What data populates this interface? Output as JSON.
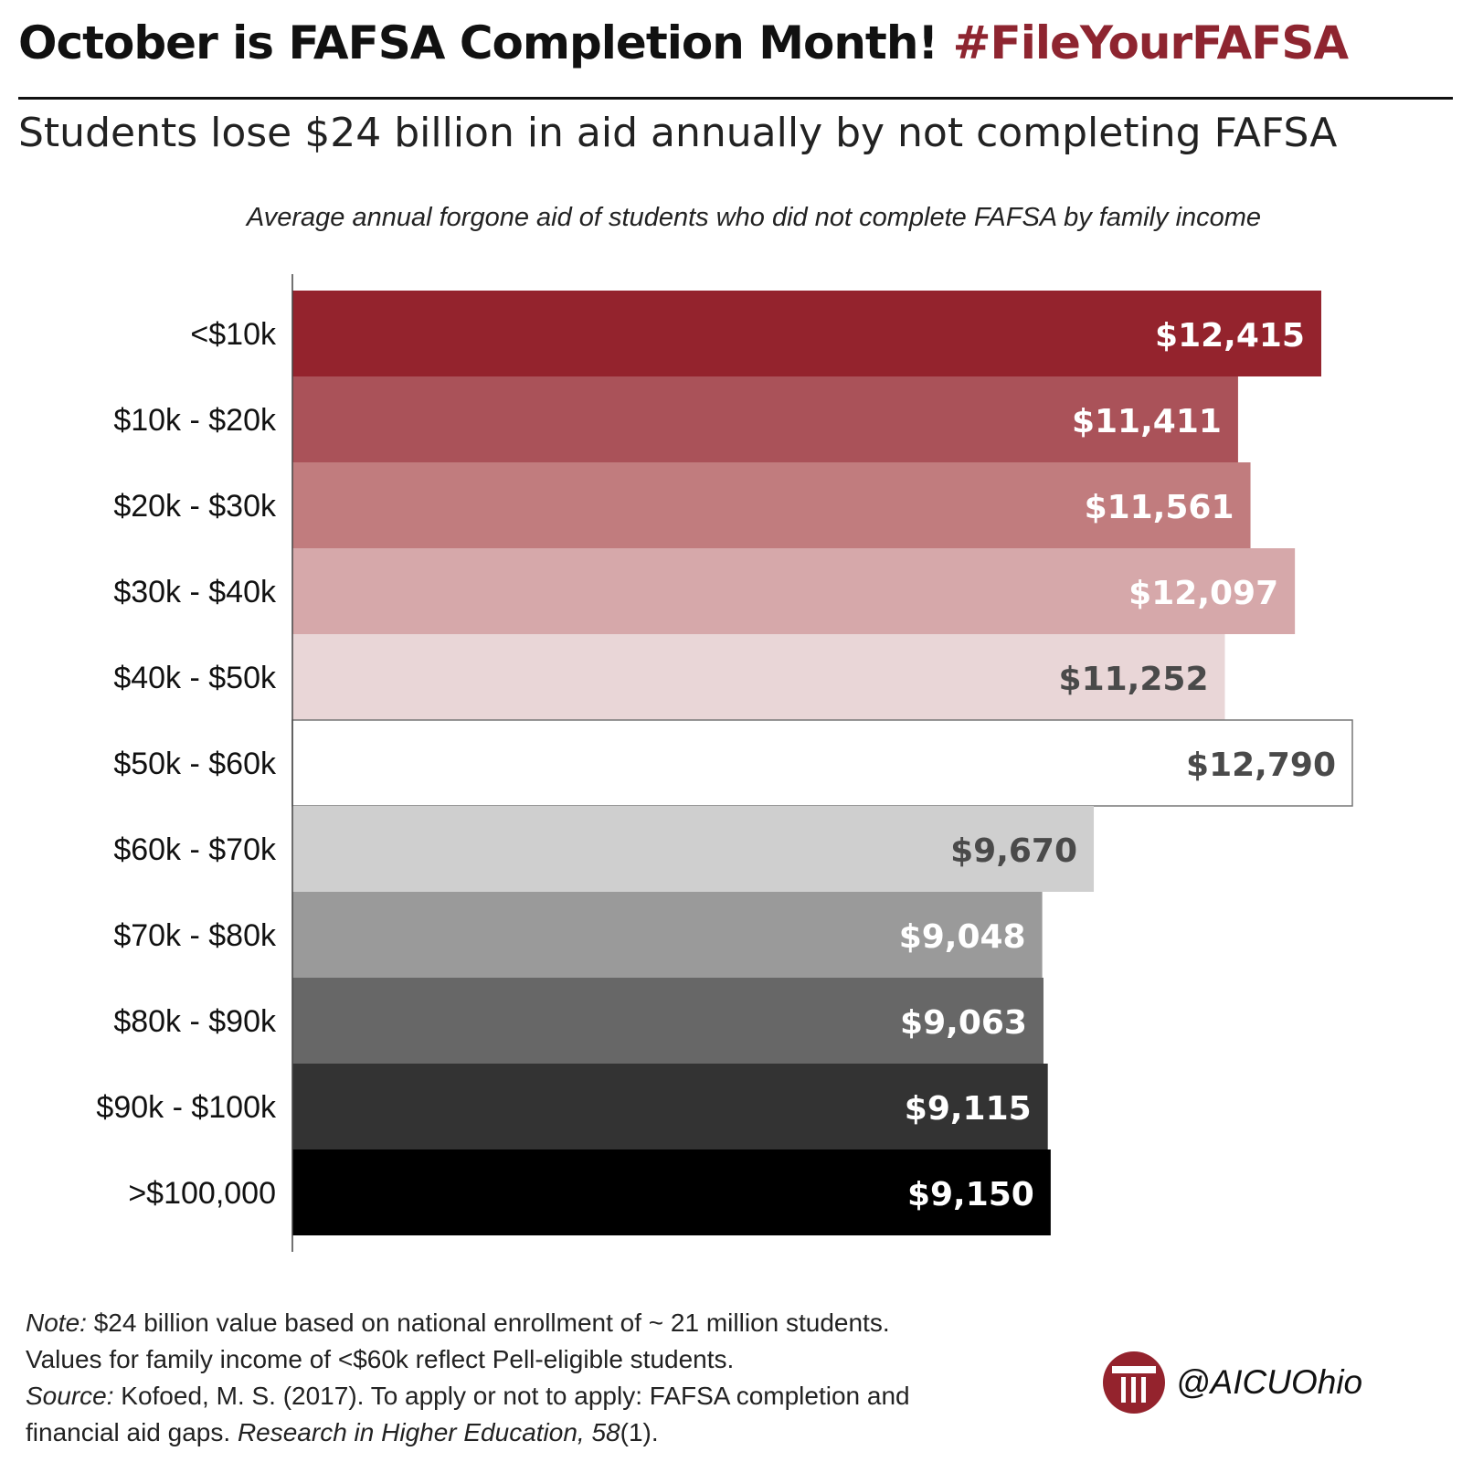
{
  "header": {
    "headline": "October is FAFSA Completion Month!",
    "hashtag": "#FileYourFAFSA",
    "subtitle": "Students lose $24 billion in aid annually by not completing FAFSA"
  },
  "chart_data": {
    "type": "bar",
    "orientation": "horizontal",
    "title": "Average annual forgone aid of students who did not complete FAFSA by family income",
    "xlabel": "",
    "ylabel": "",
    "categories": [
      "<$10k",
      "$10k - $20k",
      "$20k - $30k",
      "$30k - $40k",
      "$40k - $50k",
      "$50k - $60k",
      "$60k - $70k",
      "$70k - $80k",
      "$80k - $90k",
      "$90k - $100k",
      ">$100,000"
    ],
    "values": [
      12415,
      11411,
      11561,
      12097,
      11252,
      12790,
      9670,
      9048,
      9063,
      9115,
      9150
    ],
    "value_labels": [
      "$12,415",
      "$11,411",
      "$11,561",
      "$12,097",
      "$11,252",
      "$12,790",
      "$9,670",
      "$9,048",
      "$9,063",
      "$9,115",
      "$9,150"
    ],
    "bar_colors": [
      "#94232d",
      "#aa5259",
      "#c17c7e",
      "#d6a8aa",
      "#e9d6d7",
      "#ffffff",
      "#cfcfcf",
      "#9a9a9a",
      "#676767",
      "#333333",
      "#000000"
    ],
    "label_colors": [
      "#ffffff",
      "#ffffff",
      "#ffffff",
      "#ffffff",
      "#4a4a4a",
      "#4a4a4a",
      "#4a4a4a",
      "#ffffff",
      "#ffffff",
      "#ffffff",
      "#ffffff"
    ],
    "xlim": [
      0,
      12790
    ],
    "grid": false,
    "legend": "none"
  },
  "footnote": {
    "note_label": "Note:",
    "note_text": " $24 billion value based on national enrollment of ~ 21 million students.",
    "note_line2": "Values for family income of <$60k reflect Pell-eligible students.",
    "source_label": "Source:",
    "source_text": " Kofoed, M. S. (2017). To apply or not to apply: FAFSA completion and",
    "source_line2_a": "financial aid gaps. ",
    "journal": "Research in Higher Education, 58",
    "issue": "(1)."
  },
  "brand": {
    "handle": "@AICUOhio",
    "logo_icon": "column-logo-icon",
    "logo_color": "#94232d"
  }
}
